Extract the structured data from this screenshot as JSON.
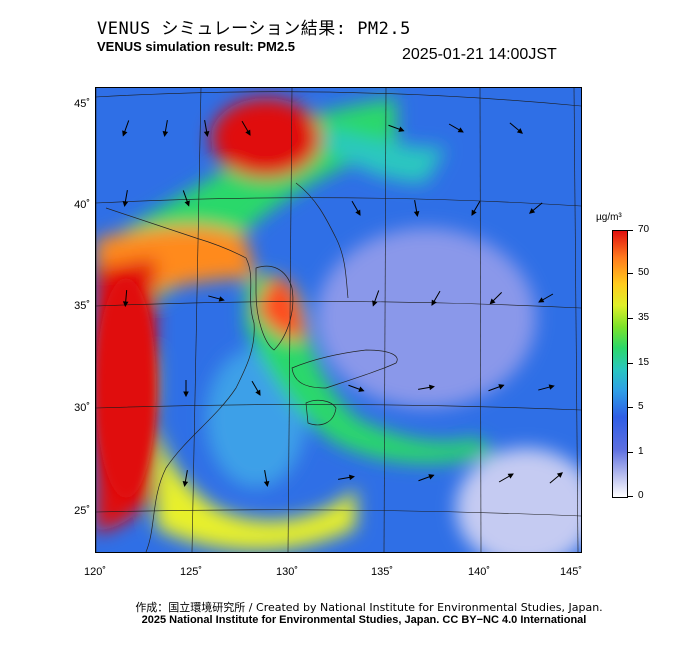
{
  "header": {
    "title_jp": "VENUS シミュレーション結果: PM2.5",
    "title_en": "VENUS simulation result: PM2.5",
    "timestamp": "2025-01-21 14:00JST"
  },
  "map": {
    "lat_labels": [
      "45˚",
      "40˚",
      "35˚",
      "30˚",
      "25˚"
    ],
    "lon_labels": [
      "120˚",
      "125˚",
      "130˚",
      "135˚",
      "140˚",
      "145˚"
    ],
    "colors": {
      "high": "#e01010",
      "orange": "#ff8a1e",
      "yellow": "#e8f02a",
      "green": "#2bd86a",
      "cyan": "#29c7c0",
      "blue": "#2f5ee6",
      "pale": "#c5cbf2"
    }
  },
  "colorbar": {
    "unit": "µg/m³",
    "labels": [
      "70",
      "50",
      "35",
      "15",
      "5",
      "1",
      "0"
    ]
  },
  "footer": {
    "credit_jp": "作成：国立環境研究所 / Created by National Institute for Environmental Studies, Japan.",
    "credit_en": "2025 National Institute for Environmental Studies, Japan. CC BY−NC 4.0 International"
  }
}
